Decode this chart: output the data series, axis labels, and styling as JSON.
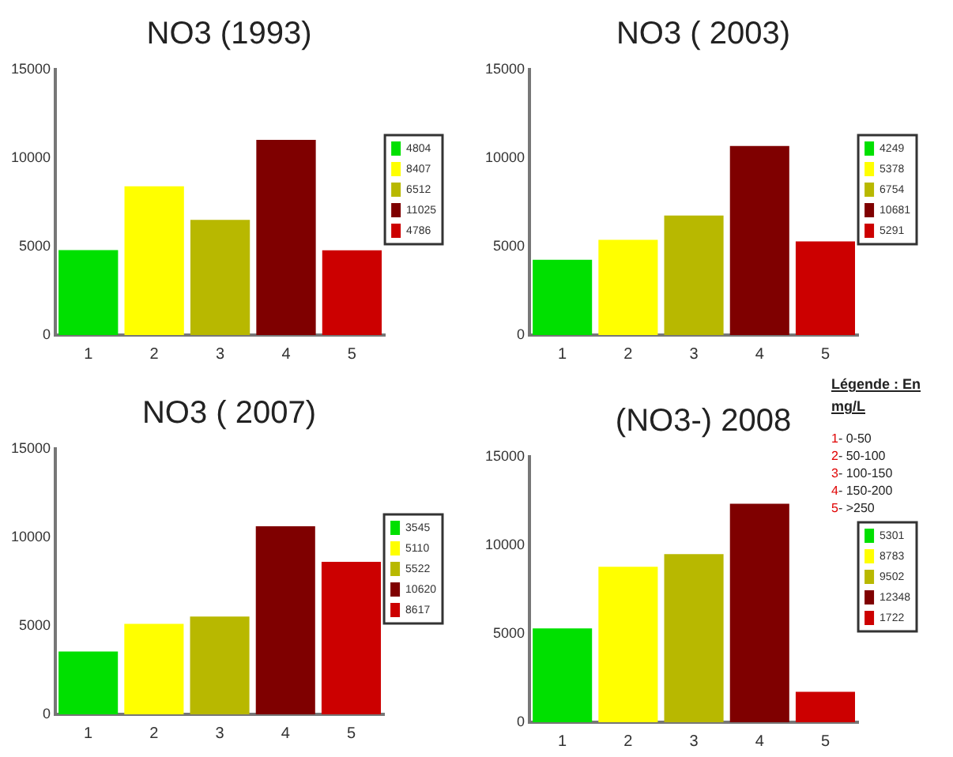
{
  "chart_data": [
    {
      "type": "bar",
      "title": "NO3 (1993)",
      "categories": [
        "1",
        "2",
        "3",
        "4",
        "5"
      ],
      "ylim": [
        0,
        15000
      ],
      "yticks": [
        0,
        5000,
        10000,
        15000
      ],
      "grid": false,
      "legend": "right",
      "series": [
        {
          "name": "4804",
          "color": "#00e000",
          "values": [
            4804,
            null,
            null,
            null,
            null
          ]
        },
        {
          "name": "8407",
          "color": "#ffff00",
          "values": [
            null,
            8407,
            null,
            null,
            null
          ]
        },
        {
          "name": "6512",
          "color": "#b8b800",
          "values": [
            null,
            null,
            6512,
            null,
            null
          ]
        },
        {
          "name": "11025",
          "color": "#7f0000",
          "values": [
            null,
            null,
            null,
            11025,
            null
          ]
        },
        {
          "name": "4786",
          "color": "#cc0000",
          "values": [
            null,
            null,
            null,
            null,
            4786
          ]
        }
      ]
    },
    {
      "type": "bar",
      "title": "NO3 ( 2003)",
      "categories": [
        "1",
        "2",
        "3",
        "4",
        "5"
      ],
      "ylim": [
        0,
        15000
      ],
      "yticks": [
        0,
        5000,
        10000,
        15000
      ],
      "grid": false,
      "legend": "right",
      "series": [
        {
          "name": "4249",
          "color": "#00e000",
          "values": [
            4249,
            null,
            null,
            null,
            null
          ]
        },
        {
          "name": "5378",
          "color": "#ffff00",
          "values": [
            null,
            5378,
            null,
            null,
            null
          ]
        },
        {
          "name": "6754",
          "color": "#b8b800",
          "values": [
            null,
            null,
            6754,
            null,
            null
          ]
        },
        {
          "name": "10681",
          "color": "#7f0000",
          "values": [
            null,
            null,
            null,
            10681,
            null
          ]
        },
        {
          "name": "5291",
          "color": "#cc0000",
          "values": [
            null,
            null,
            null,
            null,
            5291
          ]
        }
      ],
      "annotations": [
        "Légende : En mg/L",
        "1- 0-50",
        "2- 50-100",
        "3- 100-150",
        "4- 150-200",
        "5- >250"
      ]
    },
    {
      "type": "bar",
      "title": "NO3 ( 2007)",
      "categories": [
        "1",
        "2",
        "3",
        "4",
        "5"
      ],
      "ylim": [
        0,
        15000
      ],
      "yticks": [
        0,
        5000,
        10000,
        15000
      ],
      "grid": false,
      "legend": "right",
      "series": [
        {
          "name": "3545",
          "color": "#00e000",
          "values": [
            3545,
            null,
            null,
            null,
            null
          ]
        },
        {
          "name": "5110",
          "color": "#ffff00",
          "values": [
            null,
            5110,
            null,
            null,
            null
          ]
        },
        {
          "name": "5522",
          "color": "#b8b800",
          "values": [
            null,
            null,
            5522,
            null,
            null
          ]
        },
        {
          "name": "10620",
          "color": "#7f0000",
          "values": [
            null,
            null,
            null,
            10620,
            null
          ]
        },
        {
          "name": "8617",
          "color": "#cc0000",
          "values": [
            null,
            null,
            null,
            null,
            8617
          ]
        }
      ]
    },
    {
      "type": "bar",
      "title": "(NO3-) 2008",
      "categories": [
        "1",
        "2",
        "3",
        "4",
        "5"
      ],
      "ylim": [
        0,
        15000
      ],
      "yticks": [
        0,
        5000,
        10000,
        15000
      ],
      "grid": false,
      "legend": "right",
      "series": [
        {
          "name": "5301",
          "color": "#00e000",
          "values": [
            5301,
            null,
            null,
            null,
            null
          ]
        },
        {
          "name": "8783",
          "color": "#ffff00",
          "values": [
            null,
            8783,
            null,
            null,
            null
          ]
        },
        {
          "name": "9502",
          "color": "#b8b800",
          "values": [
            null,
            null,
            9502,
            null,
            null
          ]
        },
        {
          "name": "12348",
          "color": "#7f0000",
          "values": [
            null,
            null,
            null,
            12348,
            null
          ]
        },
        {
          "name": "1722",
          "color": "#cc0000",
          "values": [
            null,
            null,
            null,
            null,
            1722
          ]
        }
      ]
    }
  ]
}
